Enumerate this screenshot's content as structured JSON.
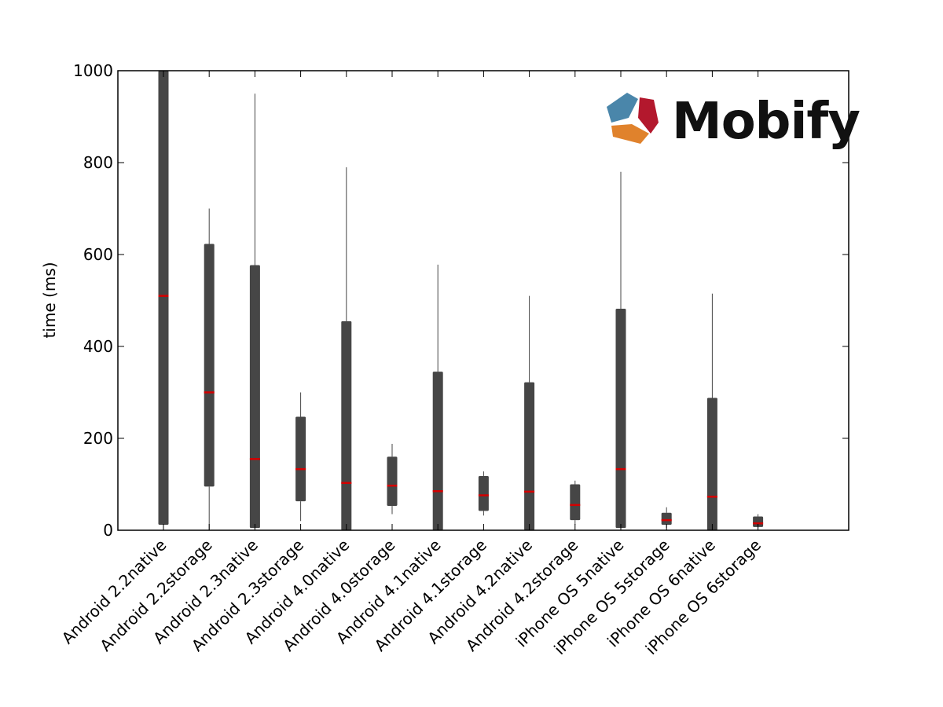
{
  "brand": {
    "name": "Mobify",
    "colors": {
      "blue": "#4a86aa",
      "red": "#b3182d",
      "orange": "#e0822c"
    }
  },
  "colors": {
    "box": "#464646",
    "whisker": "#464646",
    "median": "#d40000",
    "axis": "#000000"
  },
  "chart_data": {
    "type": "boxplot",
    "ylabel": "time (ms)",
    "xlabel": "",
    "title": "",
    "ylim": [
      0,
      1000
    ],
    "yticks": [
      0,
      200,
      400,
      600,
      800,
      1000
    ],
    "grid": false,
    "categories": [
      "Android 2.2native",
      "Android 2.2storage",
      "Android 2.3native",
      "Android 2.3storage",
      "Android 4.0native",
      "Android 4.0storage",
      "Android 4.1native",
      "Android 4.1storage",
      "Android 4.2native",
      "Android 4.2storage",
      "iPhone OS 5native",
      "iPhone OS 5storage",
      "iPhone OS 6native",
      "iPhone OS 6storage"
    ],
    "boxes": [
      {
        "whisker_low": 5,
        "q1": 12,
        "median": 510,
        "q3": 1000,
        "whisker_high": 1000
      },
      {
        "whisker_low": 0,
        "q1": 95,
        "median": 300,
        "q3": 623,
        "whisker_high": 700
      },
      {
        "whisker_low": 3,
        "q1": 5,
        "median": 155,
        "q3": 577,
        "whisker_high": 950
      },
      {
        "whisker_low": 20,
        "q1": 63,
        "median": 133,
        "q3": 247,
        "whisker_high": 300
      },
      {
        "whisker_low": 0,
        "q1": 0,
        "median": 103,
        "q3": 455,
        "whisker_high": 790
      },
      {
        "whisker_low": 35,
        "q1": 53,
        "median": 97,
        "q3": 160,
        "whisker_high": 188
      },
      {
        "whisker_low": 0,
        "q1": 0,
        "median": 85,
        "q3": 345,
        "whisker_high": 578
      },
      {
        "whisker_low": 32,
        "q1": 42,
        "median": 76,
        "q3": 118,
        "whisker_high": 128
      },
      {
        "whisker_low": 0,
        "q1": 0,
        "median": 84,
        "q3": 322,
        "whisker_high": 510
      },
      {
        "whisker_low": 12,
        "q1": 22,
        "median": 55,
        "q3": 100,
        "whisker_high": 108
      },
      {
        "whisker_low": 3,
        "q1": 5,
        "median": 133,
        "q3": 482,
        "whisker_high": 780
      },
      {
        "whisker_low": 5,
        "q1": 12,
        "median": 22,
        "q3": 38,
        "whisker_high": 50
      },
      {
        "whisker_low": 0,
        "q1": 0,
        "median": 73,
        "q3": 288,
        "whisker_high": 515
      },
      {
        "whisker_low": 4,
        "q1": 7,
        "median": 15,
        "q3": 30,
        "whisker_high": 35
      }
    ]
  }
}
